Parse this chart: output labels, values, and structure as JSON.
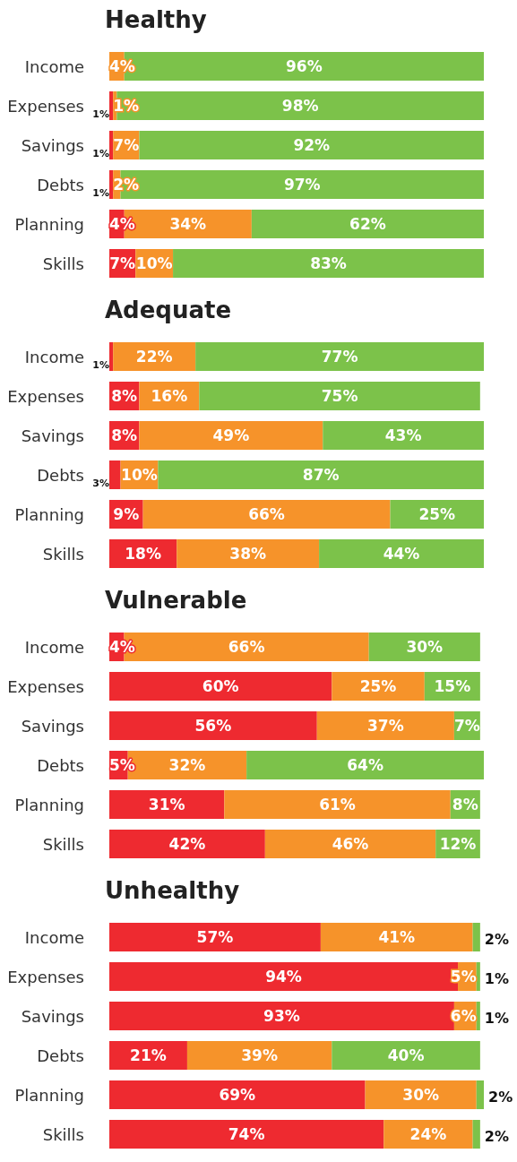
{
  "chart_data": [
    {
      "type": "bar",
      "title": "Healthy",
      "orientation": "horizontal",
      "stacked": true,
      "xlim": [
        0,
        100
      ],
      "tick_labels": "y",
      "categories": [
        "Income",
        "Expenses",
        "Savings",
        "Debts",
        "Planning",
        "Skills"
      ],
      "series": [
        {
          "color": "#ee2a30",
          "values": [
            null,
            1,
            1,
            1,
            4,
            7
          ],
          "value_labels": [
            null,
            "1%",
            "1%",
            "1%",
            "4%",
            "7%"
          ]
        },
        {
          "color": "#f6932a",
          "values": [
            4,
            1,
            7,
            2,
            34,
            10
          ],
          "value_labels": [
            "4%",
            "1%",
            "7%",
            "2%",
            "34%",
            "10%"
          ]
        },
        {
          "color": "#7cc24a",
          "values": [
            96,
            98,
            92,
            97,
            62,
            83
          ],
          "value_labels": [
            "96%",
            "98%",
            "92%",
            "97%",
            "62%",
            "83%"
          ]
        }
      ]
    },
    {
      "type": "bar",
      "title": "Adequate",
      "orientation": "horizontal",
      "stacked": true,
      "xlim": [
        0,
        100
      ],
      "tick_labels": "y",
      "categories": [
        "Income",
        "Expenses",
        "Savings",
        "Debts",
        "Planning",
        "Skills"
      ],
      "series": [
        {
          "color": "#ee2a30",
          "values": [
            1,
            8,
            8,
            3,
            9,
            18
          ],
          "value_labels": [
            "1%",
            "8%",
            "8%",
            "3%",
            "9%",
            "18%"
          ]
        },
        {
          "color": "#f6932a",
          "values": [
            22,
            16,
            49,
            10,
            66,
            38
          ],
          "value_labels": [
            "22%",
            "16%",
            "49%",
            "10%",
            "66%",
            "38%"
          ]
        },
        {
          "color": "#7cc24a",
          "values": [
            77,
            75,
            43,
            87,
            25,
            44
          ],
          "value_labels": [
            "77%",
            "75%",
            "43%",
            "87%",
            "25%",
            "44%"
          ]
        }
      ]
    },
    {
      "type": "bar",
      "title": "Vulnerable",
      "orientation": "horizontal",
      "stacked": true,
      "xlim": [
        0,
        101
      ],
      "tick_labels": "y",
      "categories": [
        "Income",
        "Expenses",
        "Savings",
        "Debts",
        "Planning",
        "Skills"
      ],
      "series": [
        {
          "color": "#ee2a30",
          "values": [
            4,
            60,
            56,
            5,
            31,
            42
          ],
          "value_labels": [
            "4%",
            "60%",
            "56%",
            "5%",
            "31%",
            "42%"
          ]
        },
        {
          "color": "#f6932a",
          "values": [
            66,
            25,
            37,
            32,
            61,
            46
          ],
          "value_labels": [
            "66%",
            "25%",
            "37%",
            "32%",
            "61%",
            "46%"
          ]
        },
        {
          "color": "#7cc24a",
          "values": [
            30,
            15,
            7,
            64,
            8,
            12
          ],
          "value_labels": [
            "30%",
            "15%",
            "7%",
            "64%",
            "8%",
            "12%"
          ]
        }
      ]
    },
    {
      "type": "bar",
      "title": "Unhealthy",
      "orientation": "horizontal",
      "stacked": true,
      "xlim": [
        0,
        101
      ],
      "tick_labels": "y",
      "categories": [
        "Income",
        "Expenses",
        "Savings",
        "Debts",
        "Planning",
        "Skills"
      ],
      "series": [
        {
          "color": "#ee2a30",
          "values": [
            57,
            94,
            93,
            21,
            69,
            74
          ],
          "value_labels": [
            "57%",
            "94%",
            "93%",
            "21%",
            "69%",
            "74%"
          ]
        },
        {
          "color": "#f6932a",
          "values": [
            41,
            5,
            6,
            39,
            30,
            24
          ],
          "value_labels": [
            "41%",
            "5%",
            "6%",
            "39%",
            "30%",
            "24%"
          ]
        },
        {
          "color": "#7cc24a",
          "values": [
            2,
            1,
            1,
            40,
            2,
            2
          ],
          "value_labels": [
            "2%",
            "1%",
            "1%",
            "40%",
            "2%",
            "2%"
          ]
        }
      ]
    }
  ]
}
